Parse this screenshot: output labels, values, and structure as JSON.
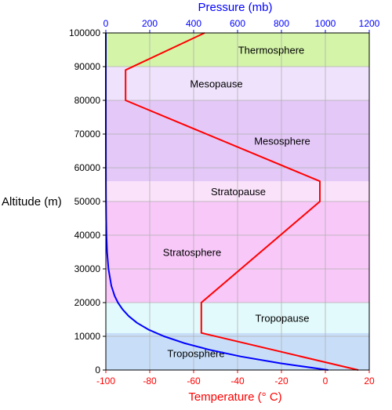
{
  "chart_data": {
    "type": "line",
    "title": "",
    "altitude_axis": {
      "label": "Altitude (m)",
      "range": [
        0,
        100000
      ],
      "ticks": [
        0,
        10000,
        20000,
        30000,
        40000,
        50000,
        60000,
        70000,
        80000,
        90000,
        100000
      ],
      "color": "#000000"
    },
    "temperature_axis": {
      "label": "Temperature (° C)",
      "position": "bottom",
      "range": [
        -100,
        20
      ],
      "ticks": [
        -100,
        -80,
        -60,
        -40,
        -20,
        0,
        20
      ],
      "color": "#ff0000"
    },
    "pressure_axis": {
      "label": "Pressure (mb)",
      "position": "top",
      "range": [
        0,
        1200
      ],
      "ticks": [
        0,
        200,
        400,
        600,
        800,
        1000,
        1200
      ],
      "color": "#0000ff"
    },
    "grid": true,
    "layers": [
      {
        "name": "Troposphere",
        "from": 0,
        "to": 10000,
        "color": "#c8def8"
      },
      {
        "name": "",
        "from": 10000,
        "to": 11000,
        "color": "#c8def8"
      },
      {
        "name": "Tropopause",
        "from": 11000,
        "to": 20000,
        "color": "#e2fafc"
      },
      {
        "name": "Stratosphere",
        "from": 20000,
        "to": 50000,
        "color": "#f8c8f8"
      },
      {
        "name": "Stratopause",
        "from": 50000,
        "to": 56000,
        "color": "#fbe2fb"
      },
      {
        "name": "Mesosphere",
        "from": 56000,
        "to": 80000,
        "color": "#e4c8f8"
      },
      {
        "name": "Mesopause",
        "from": 80000,
        "to": 90000,
        "color": "#efe2fc"
      },
      {
        "name": "Thermosphere",
        "from": 90000,
        "to": 100000,
        "color": "#d4f4a8"
      }
    ],
    "series": [
      {
        "axis": "temperature",
        "color": "#ff0000",
        "points": [
          [
            15,
            0
          ],
          [
            -56.5,
            11000
          ],
          [
            -56.5,
            20000
          ],
          [
            -2.5,
            50000
          ],
          [
            -2.5,
            56000
          ],
          [
            -91,
            80000
          ],
          [
            -91,
            89000
          ],
          [
            -55,
            100000
          ]
        ]
      },
      {
        "axis": "pressure",
        "color": "#0000ff",
        "points": [
          [
            1013,
            0
          ],
          [
            795,
            2000
          ],
          [
            616,
            4000
          ],
          [
            472,
            6000
          ],
          [
            356,
            8000
          ],
          [
            265,
            10000
          ],
          [
            194,
            12000
          ],
          [
            142,
            14000
          ],
          [
            104,
            16000
          ],
          [
            76,
            18000
          ],
          [
            55,
            20000
          ],
          [
            40,
            22000
          ],
          [
            25,
            25000
          ],
          [
            12,
            30000
          ],
          [
            5.7,
            35000
          ],
          [
            2.9,
            40000
          ],
          [
            1.5,
            45000
          ],
          [
            0.8,
            50000
          ],
          [
            0.4,
            55000
          ],
          [
            0.2,
            60000
          ],
          [
            0.05,
            70000
          ],
          [
            0.01,
            80000
          ],
          [
            0.002,
            90000
          ],
          [
            0.0003,
            100000
          ]
        ]
      }
    ]
  }
}
